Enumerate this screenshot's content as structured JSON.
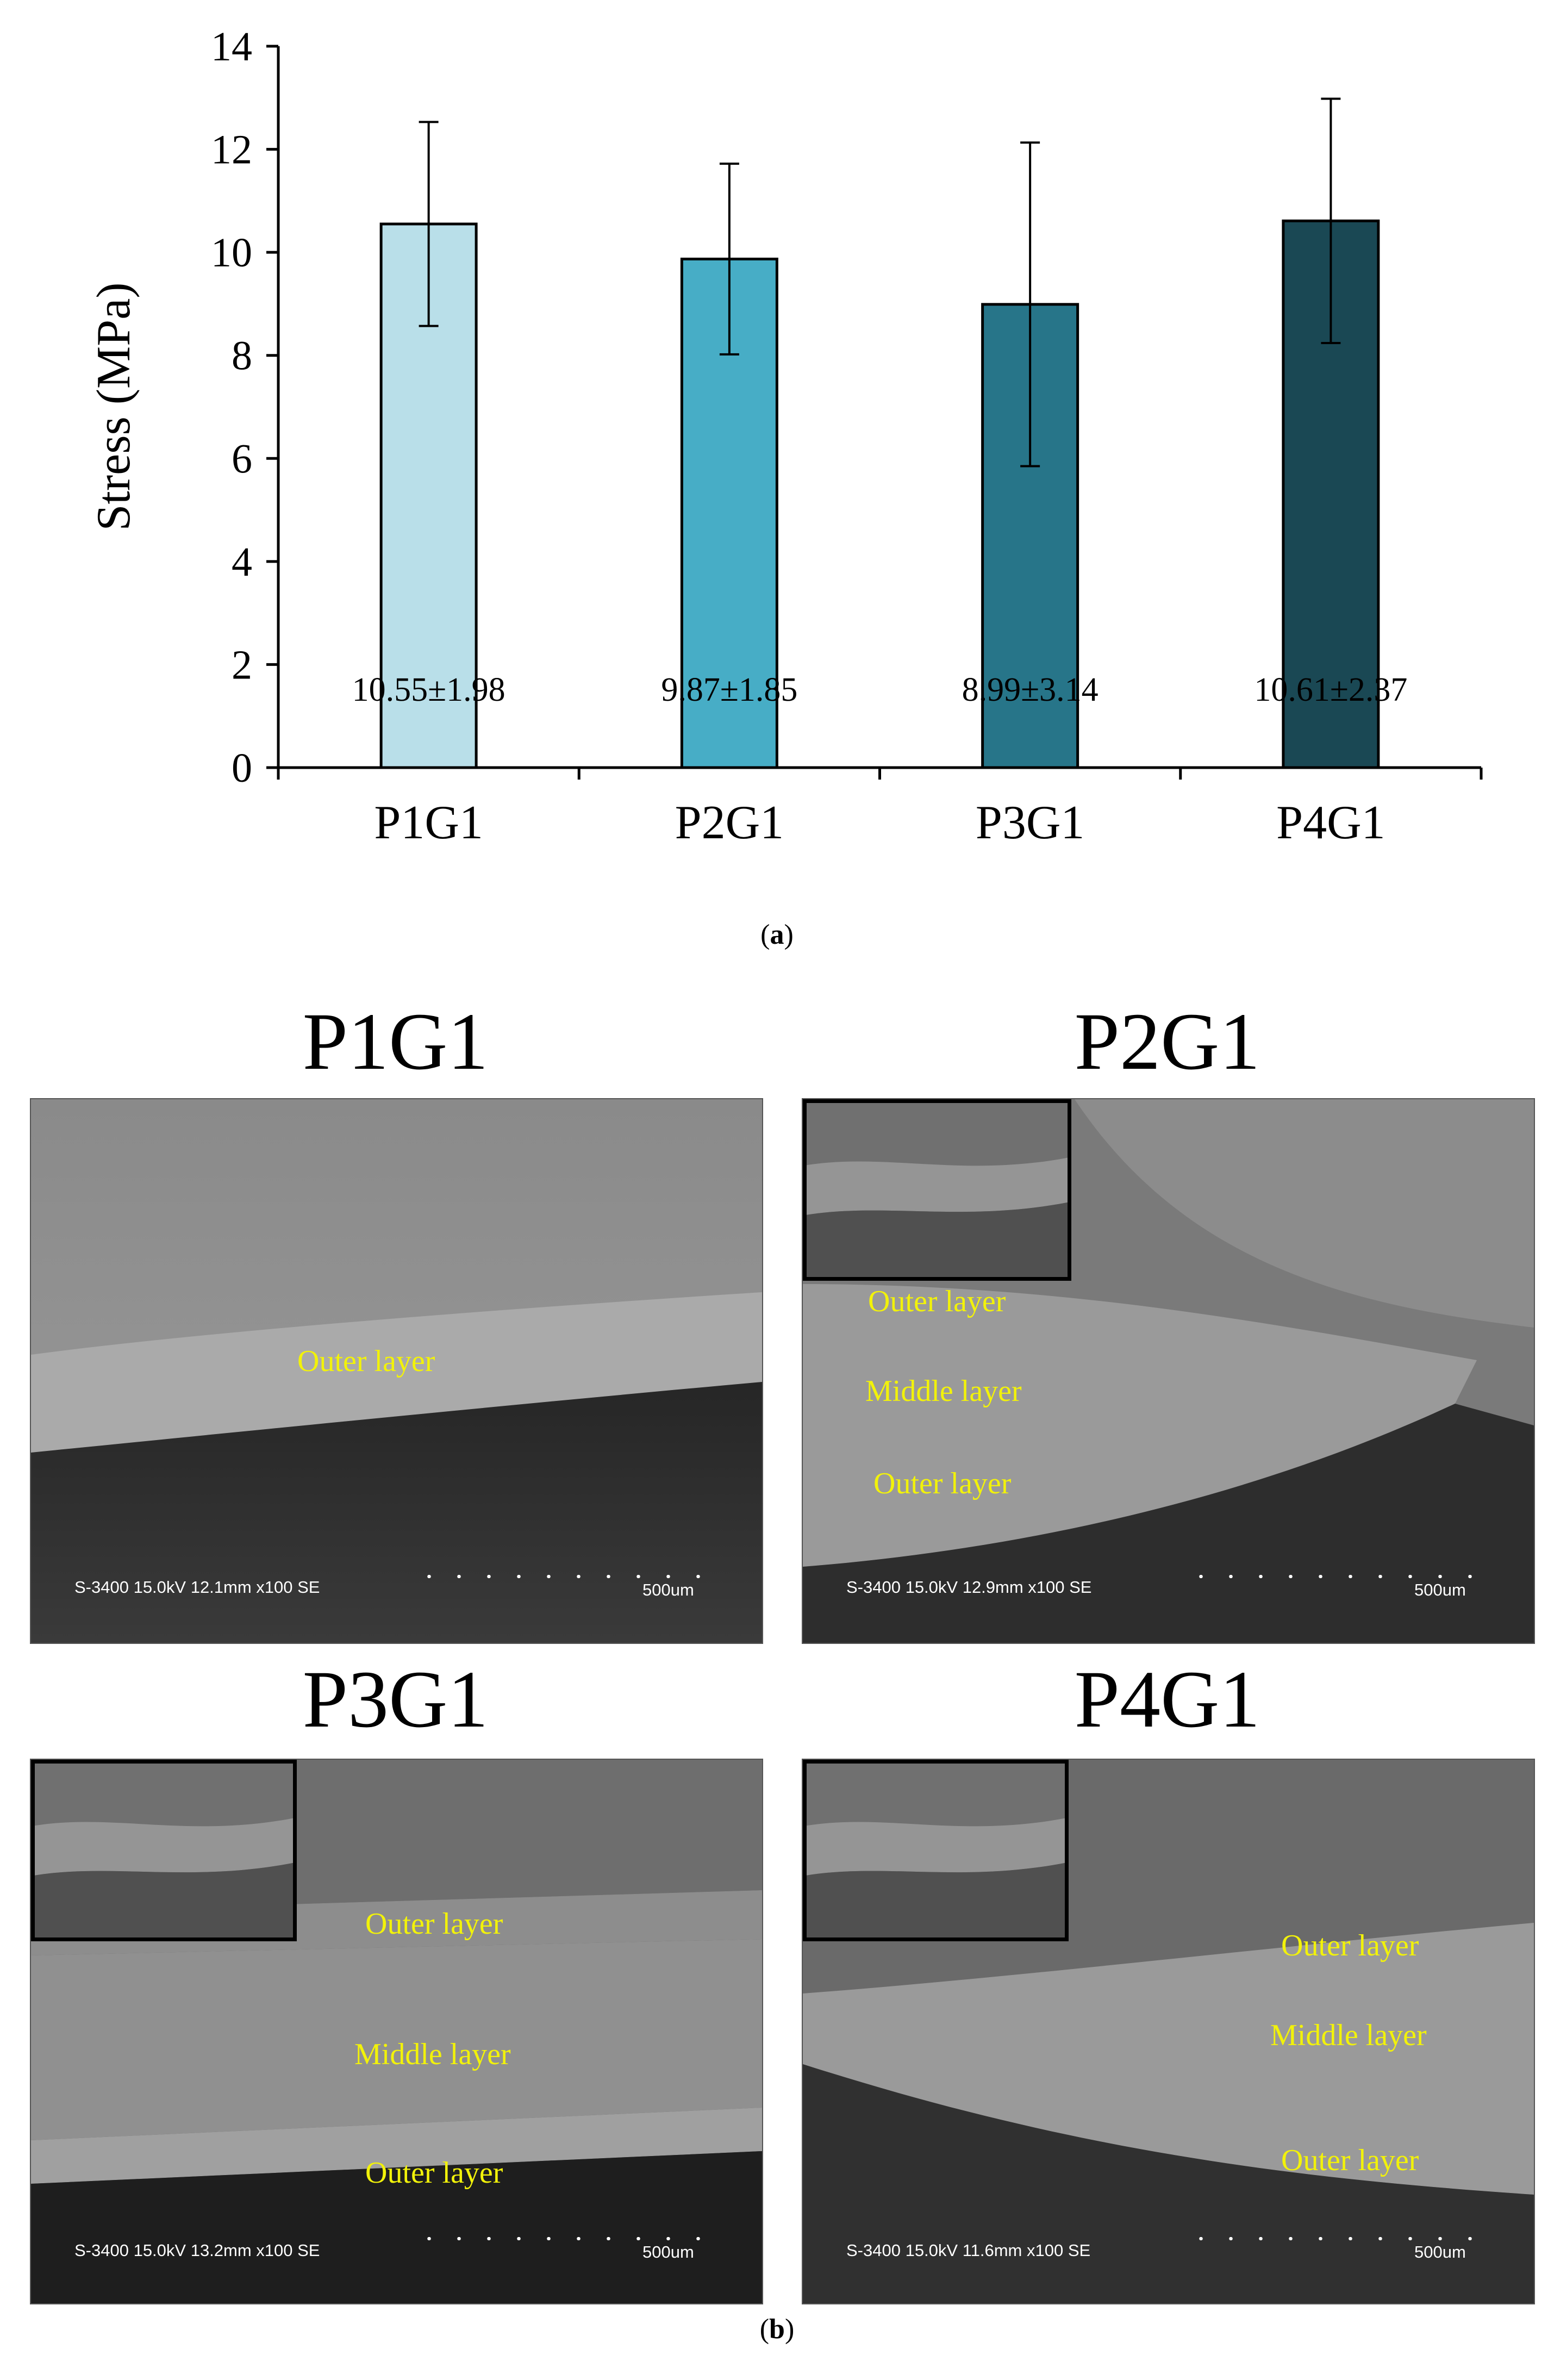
{
  "chart_data": {
    "type": "bar",
    "categories": [
      "P1G1",
      "P2G1",
      "P3G1",
      "P4G1"
    ],
    "values": [
      10.55,
      9.87,
      8.99,
      10.61
    ],
    "errors": [
      1.98,
      1.85,
      3.14,
      2.37
    ],
    "bar_labels": [
      "10.55±1.98",
      "9.87±1.85",
      "8.99±3.14",
      "10.61±2.37"
    ],
    "bar_colors": [
      "#b9dfe9",
      "#47adc6",
      "#277589",
      "#1a4854"
    ],
    "ylabel": "Stress (MPa)",
    "ylim": [
      0,
      14
    ],
    "yticks": [
      "0",
      "2",
      "4",
      "6",
      "8",
      "10",
      "12",
      "14"
    ],
    "grid": false
  },
  "captions": {
    "a": "a",
    "b": "b"
  },
  "sem_panels": [
    {
      "title": "P1G1",
      "layers": [
        "Outer layer"
      ],
      "info": "S-3400 15.0kV 12.1mm x100 SE",
      "scale": "500um"
    },
    {
      "title": "P2G1",
      "layers": [
        "Outer layer",
        "Middle layer",
        "Outer layer"
      ],
      "info": "S-3400 15.0kV 12.9mm x100 SE",
      "scale": "500um"
    },
    {
      "title": "P3G1",
      "layers": [
        "Outer layer",
        "Middle layer",
        "Outer layer"
      ],
      "info": "S-3400 15.0kV 13.2mm x100 SE",
      "scale": "500um"
    },
    {
      "title": "P4G1",
      "layers": [
        "Outer layer",
        "Middle layer",
        "Outer layer"
      ],
      "info": "S-3400 15.0kV 11.6mm x100 SE",
      "scale": "500um"
    }
  ]
}
